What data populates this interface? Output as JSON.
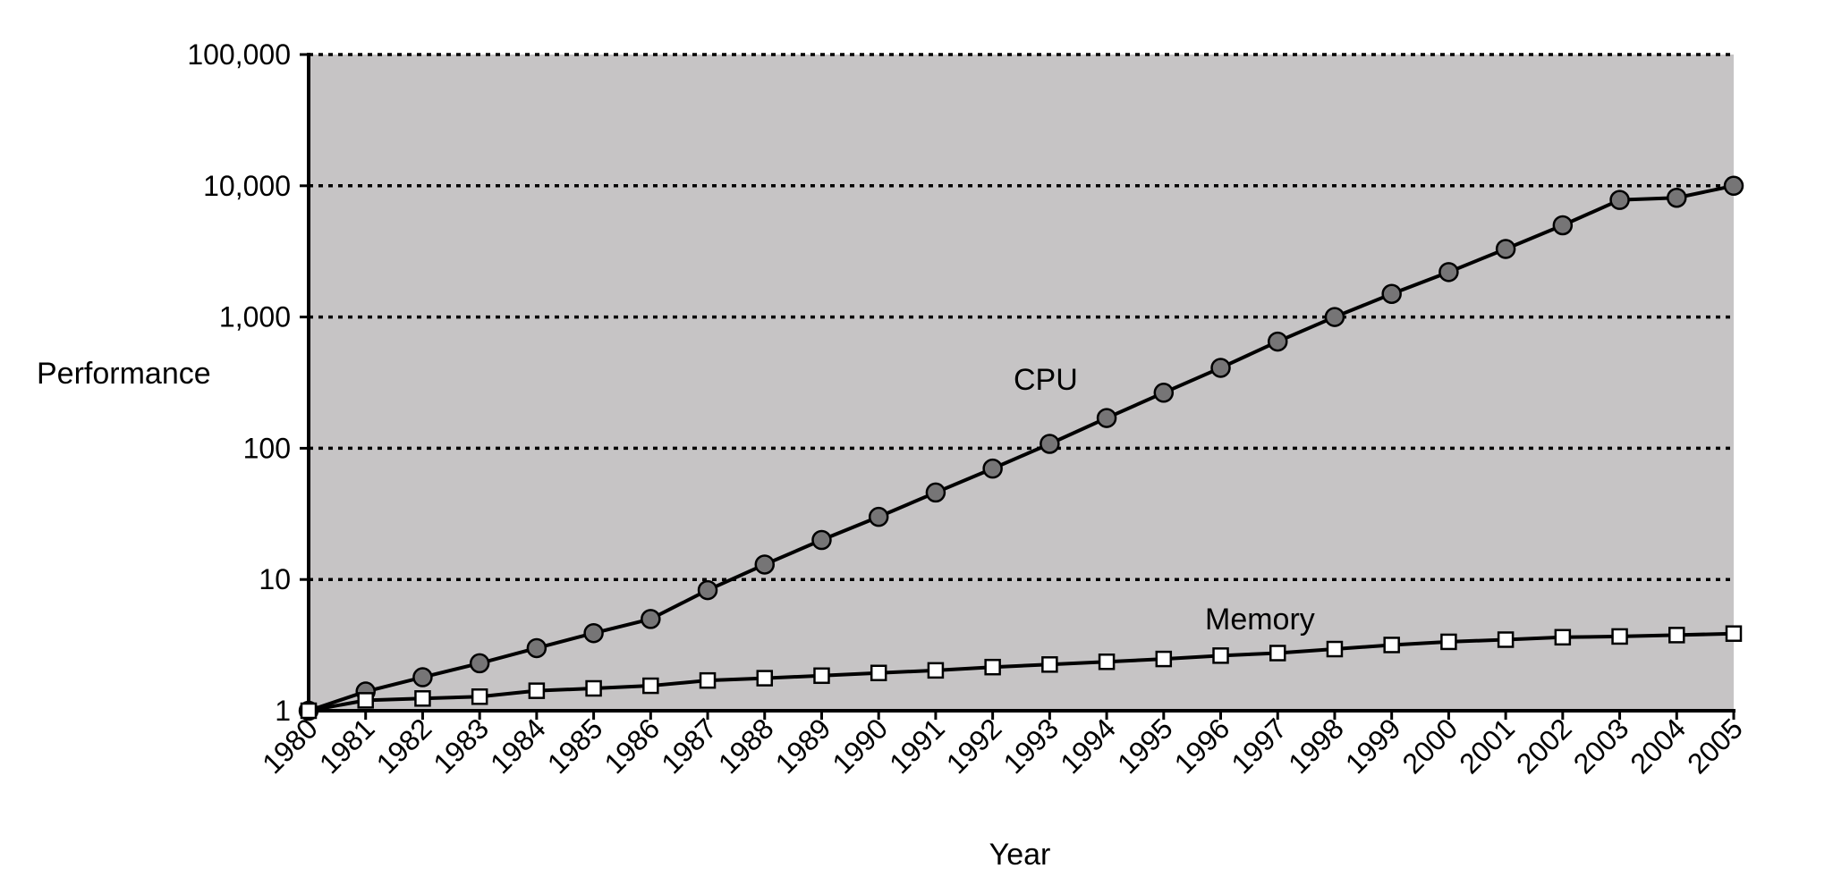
{
  "chart_data": {
    "type": "line",
    "title": "",
    "xlabel": "Year",
    "ylabel": "Performance",
    "y_scale": "log",
    "ylim": [
      1,
      100000
    ],
    "grid": true,
    "legend": "none",
    "background_color": "#c6c4c5",
    "categories": [
      "1980",
      "1981",
      "1982",
      "1983",
      "1984",
      "1985",
      "1986",
      "1987",
      "1988",
      "1989",
      "1990",
      "1991",
      "1992",
      "1993",
      "1994",
      "1995",
      "1996",
      "1997",
      "1998",
      "1999",
      "2000",
      "2001",
      "2002",
      "2003",
      "2004",
      "2005"
    ],
    "y_ticks": [
      {
        "value": 1,
        "label": "1"
      },
      {
        "value": 10,
        "label": "10"
      },
      {
        "value": 100,
        "label": "100"
      },
      {
        "value": 1000,
        "label": "1,000"
      },
      {
        "value": 10000,
        "label": "10,000"
      },
      {
        "value": 100000,
        "label": "100,000"
      }
    ],
    "series": [
      {
        "name": "CPU",
        "marker": "circle",
        "marker_color": "#767576",
        "values": [
          1,
          1.4,
          1.8,
          2.3,
          3.0,
          3.9,
          5.0,
          8.3,
          13,
          20,
          30,
          46,
          70,
          108,
          170,
          265,
          410,
          650,
          1000,
          1500,
          2200,
          3300,
          5000,
          7800,
          8100,
          10000
        ]
      },
      {
        "name": "Memory",
        "marker": "square",
        "marker_color": "#ffffff",
        "values": [
          1,
          1.2,
          1.24,
          1.28,
          1.42,
          1.48,
          1.55,
          1.7,
          1.77,
          1.85,
          1.94,
          2.03,
          2.15,
          2.25,
          2.36,
          2.48,
          2.63,
          2.75,
          2.95,
          3.17,
          3.35,
          3.48,
          3.63,
          3.68,
          3.77,
          3.87
        ]
      }
    ]
  }
}
